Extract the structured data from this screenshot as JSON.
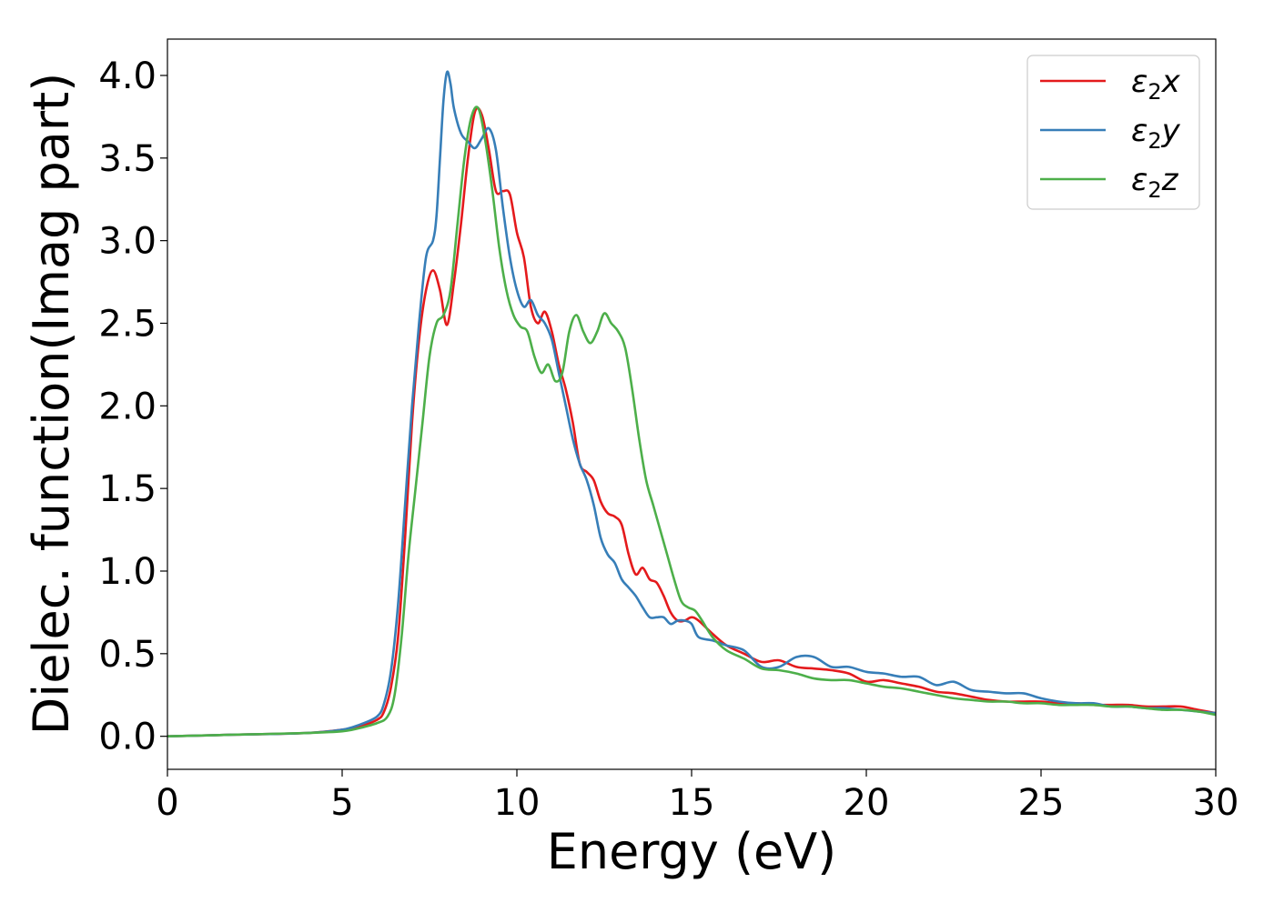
{
  "chart_data": {
    "type": "line",
    "xlabel": "Energy (eV)",
    "ylabel": "Dielec. function(Imag part)",
    "xlim": [
      0,
      30
    ],
    "ylim": [
      -0.2,
      4.22
    ],
    "xticks": [
      0,
      5,
      10,
      15,
      20,
      25,
      30
    ],
    "xtick_labels": [
      "0",
      "5",
      "10",
      "15",
      "20",
      "25",
      "30"
    ],
    "yticks": [
      0.0,
      0.5,
      1.0,
      1.5,
      2.0,
      2.5,
      3.0,
      3.5,
      4.0
    ],
    "ytick_labels": [
      "0.0",
      "0.5",
      "1.0",
      "1.5",
      "2.0",
      "2.5",
      "3.0",
      "3.5",
      "4.0"
    ],
    "grid": false,
    "legend_position": "top-right",
    "series": [
      {
        "name": "ε₂x",
        "legend": {
          "base": "ε",
          "sub": "2",
          "tail": "x"
        },
        "color": "#e41a1c",
        "x": [
          0,
          2,
          4,
          5,
          5.5,
          6,
          6.2,
          6.4,
          6.6,
          6.8,
          7.0,
          7.2,
          7.4,
          7.6,
          7.8,
          8.0,
          8.2,
          8.4,
          8.6,
          8.8,
          9.0,
          9.2,
          9.4,
          9.6,
          9.8,
          10.0,
          10.2,
          10.4,
          10.6,
          10.8,
          11.0,
          11.2,
          11.4,
          11.6,
          11.8,
          12.0,
          12.2,
          12.4,
          12.6,
          12.8,
          13.0,
          13.2,
          13.4,
          13.6,
          13.8,
          14.0,
          14.2,
          14.4,
          14.6,
          14.8,
          15.0,
          15.2,
          15.6,
          16.0,
          16.5,
          17.0,
          17.5,
          18.0,
          18.5,
          19.0,
          19.5,
          20.0,
          20.5,
          21.0,
          21.5,
          22.0,
          22.5,
          23.0,
          23.5,
          24.0,
          24.5,
          25.0,
          25.5,
          26.0,
          26.5,
          27.0,
          27.5,
          28.0,
          28.5,
          29.0,
          29.5,
          30.0
        ],
        "y": [
          0.0,
          0.01,
          0.02,
          0.04,
          0.06,
          0.1,
          0.15,
          0.3,
          0.6,
          1.2,
          1.9,
          2.4,
          2.7,
          2.82,
          2.7,
          2.49,
          2.75,
          3.1,
          3.5,
          3.78,
          3.76,
          3.55,
          3.3,
          3.3,
          3.28,
          3.05,
          2.9,
          2.6,
          2.5,
          2.57,
          2.45,
          2.25,
          2.1,
          1.9,
          1.65,
          1.6,
          1.55,
          1.42,
          1.35,
          1.33,
          1.28,
          1.1,
          0.98,
          1.02,
          0.95,
          0.93,
          0.85,
          0.75,
          0.7,
          0.7,
          0.72,
          0.7,
          0.62,
          0.55,
          0.5,
          0.45,
          0.46,
          0.42,
          0.41,
          0.4,
          0.38,
          0.33,
          0.34,
          0.32,
          0.3,
          0.27,
          0.26,
          0.24,
          0.22,
          0.21,
          0.21,
          0.21,
          0.2,
          0.2,
          0.19,
          0.19,
          0.19,
          0.18,
          0.18,
          0.18,
          0.16,
          0.14
        ]
      },
      {
        "name": "ε₂y",
        "legend": {
          "base": "ε",
          "sub": "2",
          "tail": "y"
        },
        "color": "#377eb8",
        "x": [
          0,
          2,
          4,
          5,
          5.5,
          6,
          6.2,
          6.4,
          6.6,
          6.8,
          7.0,
          7.2,
          7.4,
          7.6,
          7.7,
          7.8,
          7.9,
          8.0,
          8.1,
          8.2,
          8.4,
          8.6,
          8.8,
          9.0,
          9.2,
          9.4,
          9.6,
          9.8,
          10.0,
          10.2,
          10.4,
          10.6,
          10.8,
          11.0,
          11.2,
          11.4,
          11.6,
          11.8,
          12.0,
          12.2,
          12.4,
          12.6,
          12.8,
          13.0,
          13.2,
          13.4,
          13.6,
          13.8,
          14.0,
          14.2,
          14.4,
          14.6,
          14.8,
          15.0,
          15.2,
          15.6,
          16.0,
          16.5,
          17.0,
          17.5,
          18.0,
          18.5,
          19.0,
          19.5,
          20.0,
          20.5,
          21.0,
          21.5,
          22.0,
          22.5,
          23.0,
          23.5,
          24.0,
          24.5,
          25.0,
          25.5,
          26.0,
          26.5,
          27.0,
          27.5,
          28.0,
          28.5,
          29.0,
          29.5,
          30.0
        ],
        "y": [
          0.0,
          0.01,
          0.02,
          0.04,
          0.07,
          0.12,
          0.2,
          0.4,
          0.8,
          1.4,
          2.0,
          2.5,
          2.9,
          3.0,
          3.15,
          3.5,
          3.85,
          4.02,
          3.95,
          3.8,
          3.65,
          3.6,
          3.56,
          3.62,
          3.68,
          3.55,
          3.2,
          2.9,
          2.7,
          2.6,
          2.64,
          2.55,
          2.5,
          2.4,
          2.2,
          2.0,
          1.8,
          1.65,
          1.55,
          1.4,
          1.2,
          1.1,
          1.05,
          0.95,
          0.9,
          0.85,
          0.78,
          0.72,
          0.72,
          0.72,
          0.68,
          0.7,
          0.7,
          0.68,
          0.6,
          0.58,
          0.55,
          0.52,
          0.42,
          0.42,
          0.48,
          0.48,
          0.42,
          0.42,
          0.39,
          0.38,
          0.36,
          0.36,
          0.31,
          0.33,
          0.28,
          0.27,
          0.26,
          0.26,
          0.23,
          0.21,
          0.2,
          0.2,
          0.18,
          0.18,
          0.17,
          0.17,
          0.16,
          0.15,
          0.14
        ]
      },
      {
        "name": "ε₂z",
        "legend": {
          "base": "ε",
          "sub": "2",
          "tail": "z"
        },
        "color": "#4daf4a",
        "x": [
          0,
          2,
          4,
          5,
          5.5,
          6,
          6.3,
          6.5,
          6.7,
          6.9,
          7.1,
          7.3,
          7.5,
          7.7,
          7.9,
          8.1,
          8.3,
          8.5,
          8.7,
          8.9,
          9.1,
          9.3,
          9.5,
          9.7,
          9.9,
          10.1,
          10.3,
          10.5,
          10.7,
          10.9,
          11.1,
          11.3,
          11.5,
          11.7,
          11.9,
          12.1,
          12.3,
          12.5,
          12.7,
          12.9,
          13.1,
          13.3,
          13.5,
          13.7,
          13.9,
          14.1,
          14.3,
          14.5,
          14.7,
          14.9,
          15.1,
          15.3,
          15.6,
          16.0,
          16.5,
          17.0,
          17.5,
          18.0,
          18.5,
          19.0,
          19.5,
          20.0,
          20.5,
          21.0,
          21.5,
          22.0,
          22.5,
          23.0,
          23.5,
          24.0,
          24.5,
          25.0,
          25.5,
          26.0,
          26.5,
          27.0,
          27.5,
          28.0,
          28.5,
          29.0,
          29.5,
          30.0
        ],
        "y": [
          0.0,
          0.01,
          0.02,
          0.03,
          0.05,
          0.08,
          0.12,
          0.25,
          0.6,
          1.1,
          1.5,
          1.9,
          2.3,
          2.5,
          2.55,
          2.7,
          3.1,
          3.5,
          3.75,
          3.8,
          3.6,
          3.3,
          2.95,
          2.7,
          2.55,
          2.48,
          2.45,
          2.3,
          2.2,
          2.25,
          2.15,
          2.2,
          2.45,
          2.55,
          2.45,
          2.38,
          2.45,
          2.56,
          2.5,
          2.45,
          2.35,
          2.1,
          1.8,
          1.55,
          1.4,
          1.25,
          1.1,
          0.95,
          0.82,
          0.78,
          0.76,
          0.7,
          0.6,
          0.52,
          0.47,
          0.41,
          0.4,
          0.38,
          0.35,
          0.34,
          0.34,
          0.32,
          0.3,
          0.29,
          0.27,
          0.25,
          0.23,
          0.22,
          0.21,
          0.21,
          0.2,
          0.2,
          0.19,
          0.19,
          0.19,
          0.18,
          0.18,
          0.17,
          0.16,
          0.16,
          0.15,
          0.13
        ]
      }
    ]
  }
}
